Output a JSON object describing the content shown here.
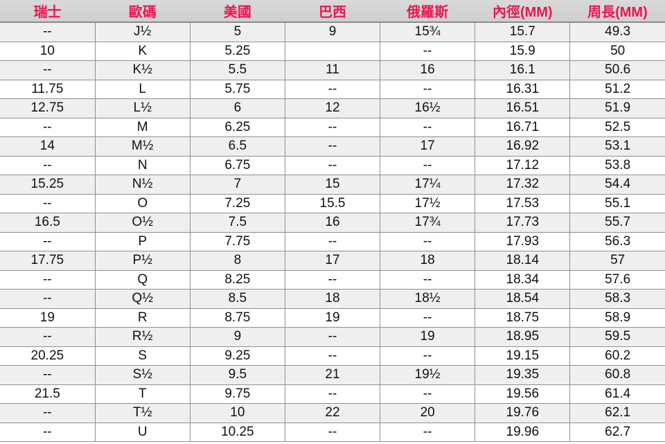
{
  "header_color": "#e8174f",
  "columns": [
    "瑞士",
    "歐碼",
    "美國",
    "巴西",
    "俄羅斯",
    "內徑(MM)",
    "周長(MM)"
  ],
  "rows": [
    [
      "--",
      "J½",
      "5",
      "9",
      "15¾",
      "15.7",
      "49.3"
    ],
    [
      "10",
      "K",
      "5.25",
      "",
      "--",
      "15.9",
      "50"
    ],
    [
      "--",
      "K½",
      "5.5",
      "11",
      "16",
      "16.1",
      "50.6"
    ],
    [
      "11.75",
      "L",
      "5.75",
      "--",
      "--",
      "16.31",
      "51.2"
    ],
    [
      "12.75",
      "L½",
      "6",
      "12",
      "16½",
      "16.51",
      "51.9"
    ],
    [
      "--",
      "M",
      "6.25",
      "--",
      "--",
      "16.71",
      "52.5"
    ],
    [
      "14",
      "M½",
      "6.5",
      "--",
      "17",
      "16.92",
      "53.1"
    ],
    [
      "--",
      "N",
      "6.75",
      "--",
      "--",
      "17.12",
      "53.8"
    ],
    [
      "15.25",
      "N½",
      "7",
      "15",
      "17¼",
      "17.32",
      "54.4"
    ],
    [
      "--",
      "O",
      "7.25",
      "15.5",
      "17½",
      "17.53",
      "55.1"
    ],
    [
      "16.5",
      "O½",
      "7.5",
      "16",
      "17¾",
      "17.73",
      "55.7"
    ],
    [
      "--",
      "P",
      "7.75",
      "--",
      "--",
      "17.93",
      "56.3"
    ],
    [
      "17.75",
      "P½",
      "8",
      "17",
      "18",
      "18.14",
      "57"
    ],
    [
      "--",
      "Q",
      "8.25",
      "--",
      "--",
      "18.34",
      "57.6"
    ],
    [
      "--",
      "Q½",
      "8.5",
      "18",
      "18½",
      "18.54",
      "58.3"
    ],
    [
      "19",
      "R",
      "8.75",
      "19",
      "--",
      "18.75",
      "58.9"
    ],
    [
      "--",
      "R½",
      "9",
      "--",
      "19",
      "18.95",
      "59.5"
    ],
    [
      "20.25",
      "S",
      "9.25",
      "--",
      "--",
      "19.15",
      "60.2"
    ],
    [
      "--",
      "S½",
      "9.5",
      "21",
      "19½",
      "19.35",
      "60.8"
    ],
    [
      "21.5",
      "T",
      "9.75",
      "--",
      "--",
      "19.56",
      "61.4"
    ],
    [
      "--",
      "T½",
      "10",
      "22",
      "20",
      "19.76",
      "62.1"
    ],
    [
      "--",
      "U",
      "10.25",
      "--",
      "--",
      "19.96",
      "62.7"
    ]
  ]
}
